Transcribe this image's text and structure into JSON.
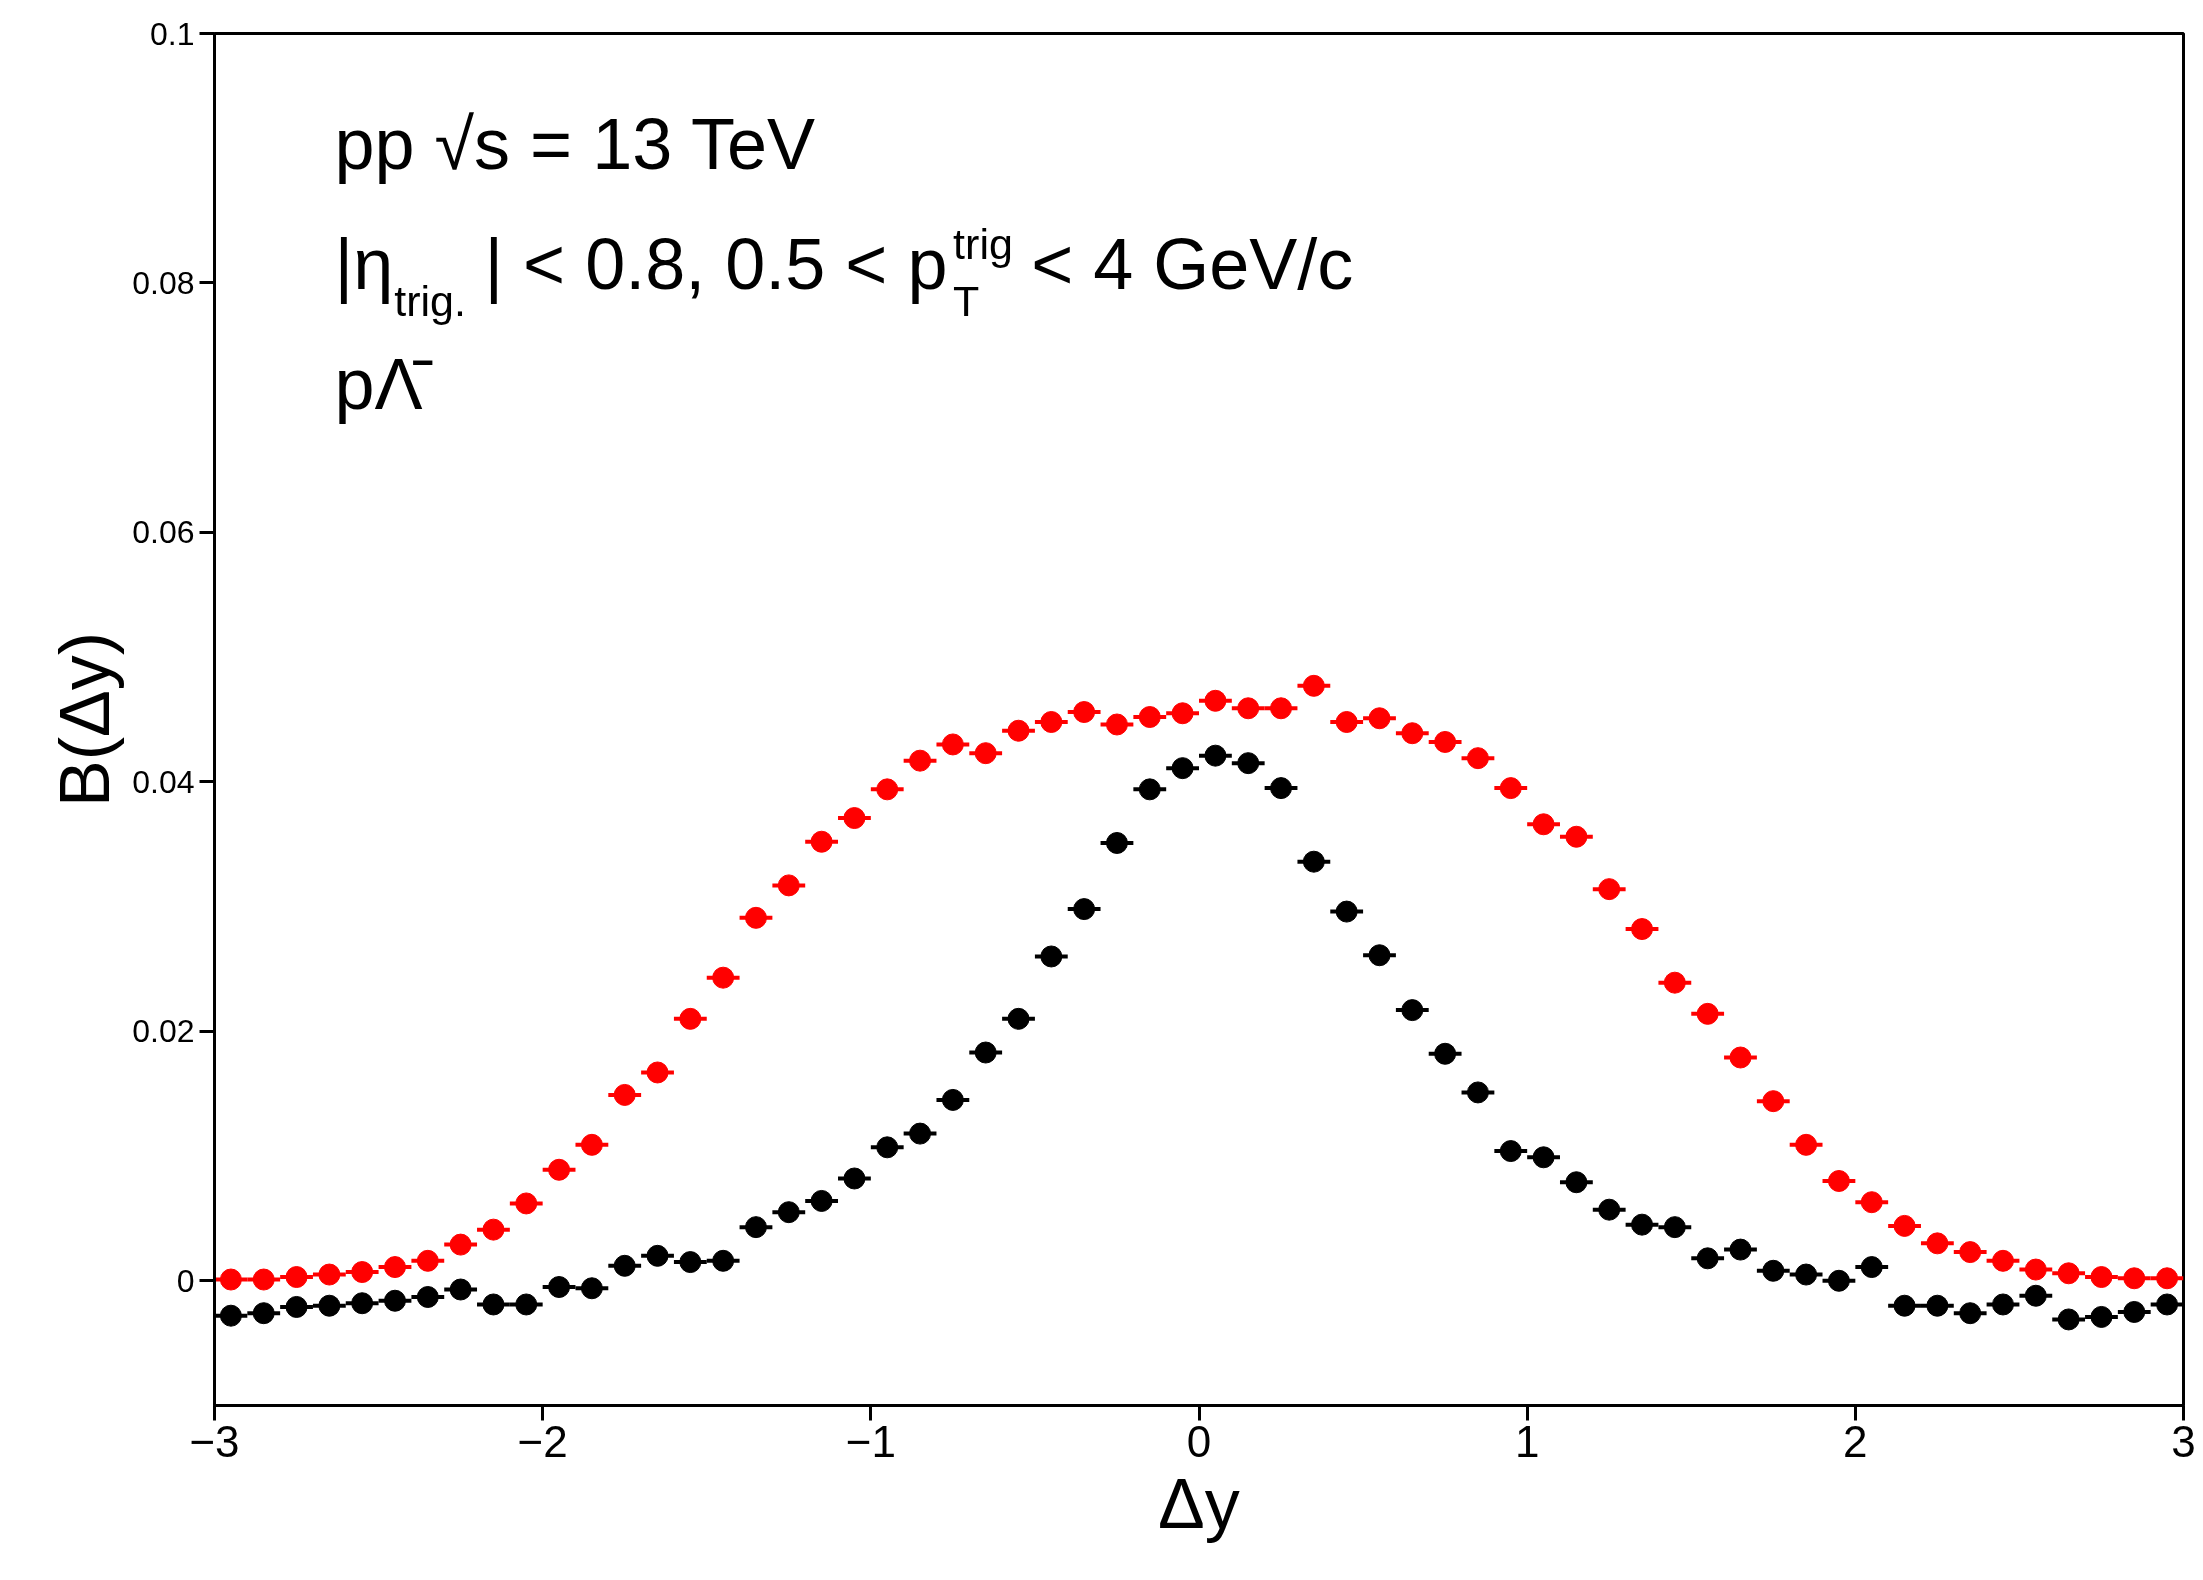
{
  "chart_data": {
    "type": "scatter",
    "xlabel": "Δy",
    "ylabel": "B(Δy)",
    "annotations": [
      "pp √s = 13 TeV",
      "|η$_{trig.}$| < 0.8, 0.5 < p$^{trig}$$_{T}$ < 4 GeV/c",
      "pΛ̄"
    ],
    "x": [
      -2.95,
      -2.85,
      -2.75,
      -2.65,
      -2.55,
      -2.45,
      -2.35,
      -2.25,
      -2.15,
      -2.05,
      -1.95,
      -1.85,
      -1.75,
      -1.65,
      -1.55,
      -1.45,
      -1.35,
      -1.25,
      -1.15,
      -1.05,
      -0.95,
      -0.85,
      -0.75,
      -0.65,
      -0.55,
      -0.45,
      -0.35,
      -0.25,
      -0.15,
      -0.05,
      0.05,
      0.15,
      0.25,
      0.35,
      0.45,
      0.55,
      0.65,
      0.75,
      0.85,
      0.95,
      1.05,
      1.15,
      1.25,
      1.35,
      1.45,
      1.55,
      1.65,
      1.75,
      1.85,
      1.95,
      2.05,
      2.15,
      2.25,
      2.35,
      2.45,
      2.55,
      2.65,
      2.75,
      2.85,
      2.95
    ],
    "series": [
      {
        "color": "#000000",
        "values": [
          -0.0028,
          -0.0026,
          -0.0021,
          -0.002,
          -0.0018,
          -0.0016,
          -0.0013,
          -0.0007,
          -0.0019,
          -0.0019,
          -0.0005,
          -0.0006,
          0.0012,
          0.002,
          0.0015,
          0.0016,
          0.0043,
          0.0055,
          0.0064,
          0.0082,
          0.0107,
          0.0118,
          0.0145,
          0.0183,
          0.021,
          0.026,
          0.0298,
          0.0351,
          0.0394,
          0.0411,
          0.0421,
          0.0415,
          0.0395,
          0.0336,
          0.0296,
          0.0261,
          0.0217,
          0.0182,
          0.0151,
          0.0104,
          0.0099,
          0.0079,
          0.0057,
          0.0045,
          0.0043,
          0.0018,
          0.0025,
          0.0008,
          0.0005,
          0,
          0.0011,
          -0.002,
          -0.002,
          -0.0026,
          -0.0019,
          -0.0012,
          -0.0031,
          -0.0029,
          -0.0025,
          -0.0019
        ],
        "xerrors": [
          0.05,
          0.05,
          0.05,
          0.05,
          0.05,
          0.05,
          0.05,
          0.05,
          0.05,
          0.05,
          0.05,
          0.05,
          0.05,
          0.05,
          0.05,
          0.05,
          0.05,
          0.05,
          0.05,
          0.05,
          0.05,
          0.05,
          0.05,
          0.05,
          0.05,
          0.05,
          0.05,
          0.05,
          0.05,
          0.05,
          0.05,
          0.05,
          0.05,
          0.05,
          0.05,
          0.05,
          0.05,
          0.05,
          0.05,
          0.05,
          0.05,
          0.05,
          0.05,
          0.05,
          0.05,
          0.05,
          0.05,
          0.05,
          0.05,
          0.05,
          0.05,
          0.05,
          0.05,
          0.05,
          0.05,
          0.05,
          0.05,
          0.05,
          0.05,
          0.05
        ]
      },
      {
        "color": "#ff0000",
        "values": [
          0.0001,
          0.0001,
          0.0003,
          0.0005,
          0.0007,
          0.0011,
          0.0016,
          0.0029,
          0.0041,
          0.0062,
          0.0089,
          0.0109,
          0.0149,
          0.0167,
          0.021,
          0.0243,
          0.0291,
          0.0317,
          0.0352,
          0.0371,
          0.0394,
          0.0417,
          0.043,
          0.0423,
          0.0441,
          0.0448,
          0.0456,
          0.0446,
          0.0452,
          0.0455,
          0.0465,
          0.0459,
          0.0459,
          0.0477,
          0.0448,
          0.0451,
          0.0439,
          0.0432,
          0.0419,
          0.0395,
          0.0366,
          0.0356,
          0.0314,
          0.0282,
          0.0239,
          0.0214,
          0.0179,
          0.0144,
          0.0109,
          0.008,
          0.0063,
          0.0044,
          0.003,
          0.0023,
          0.0016,
          0.0009,
          0.0006,
          0.0003,
          0.0002,
          0.0002
        ],
        "xerrors": [
          0.05,
          0.05,
          0.05,
          0.05,
          0.05,
          0.05,
          0.05,
          0.05,
          0.05,
          0.05,
          0.05,
          0.05,
          0.05,
          0.05,
          0.05,
          0.05,
          0.05,
          0.05,
          0.05,
          0.05,
          0.05,
          0.05,
          0.05,
          0.05,
          0.05,
          0.05,
          0.05,
          0.05,
          0.05,
          0.05,
          0.05,
          0.05,
          0.05,
          0.05,
          0.05,
          0.05,
          0.05,
          0.05,
          0.05,
          0.05,
          0.05,
          0.05,
          0.05,
          0.05,
          0.05,
          0.05,
          0.05,
          0.05,
          0.05,
          0.05,
          0.05,
          0.05,
          0.05,
          0.05,
          0.05,
          0.05,
          0.05,
          0.05,
          0.05,
          0.05
        ]
      }
    ],
    "xlim": [
      -3,
      3
    ],
    "ylim": [
      -0.01,
      0.1
    ],
    "xticks": [
      {
        "value": -3,
        "label": "−3"
      },
      {
        "value": -2,
        "label": "−2"
      },
      {
        "value": -1,
        "label": "−1"
      },
      0,
      1,
      2,
      3
    ],
    "yticks": [
      0,
      0.02,
      0.04,
      0.06,
      0.08,
      0.1
    ],
    "marker": "circle",
    "grid": false
  }
}
